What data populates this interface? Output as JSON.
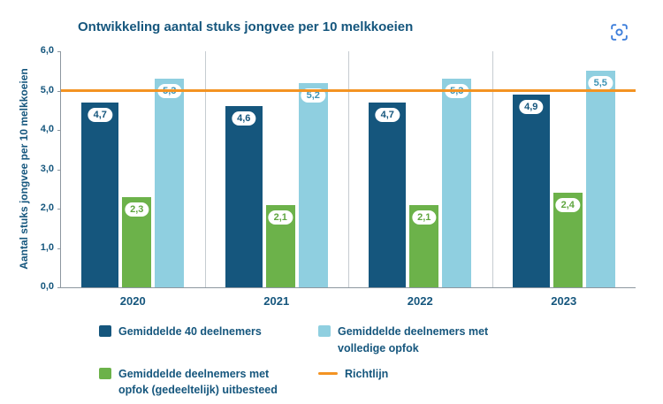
{
  "header": {
    "title": "Ontwikkeling aantal stuks jongvee per 10 melkkoeien",
    "focus_icon": "focus-scan-icon",
    "focus_icon_color": "#3D7EDB"
  },
  "chart_data": {
    "type": "bar",
    "title": "Ontwikkeling aantal stuks jongvee per 10 melkkoeien",
    "xlabel": "",
    "ylabel": "Aantal stuks jongvee per 10 melkkoeien",
    "ylim": [
      0,
      6
    ],
    "ytick_labels": [
      "0,0",
      "1,0",
      "2,0",
      "3,0",
      "4,0",
      "5,0",
      "6,0"
    ],
    "grid": false,
    "legend_position": "bottom",
    "categories": [
      "2020",
      "2021",
      "2022",
      "2023"
    ],
    "series": [
      {
        "name": "Gemiddelde 40 deelnemers",
        "color": "#15567D",
        "label_color": "#15567D",
        "values": [
          4.7,
          4.6,
          4.7,
          4.9
        ],
        "labels": [
          "4,7",
          "4,6",
          "4,7",
          "4,9"
        ]
      },
      {
        "name": "Gemiddelde deelnemers met opfok (gedeeltelijk) uitbesteed",
        "color": "#6CB24A",
        "label_color": "#5FA53F",
        "values": [
          2.3,
          2.1,
          2.1,
          2.4
        ],
        "labels": [
          "2,3",
          "2,1",
          "2,1",
          "2,4"
        ]
      },
      {
        "name": "Gemiddelde deelnemers met volledige opfok",
        "color": "#8FCFE0",
        "label_color": "#3D93B4",
        "values": [
          5.3,
          5.2,
          5.3,
          5.5
        ],
        "labels": [
          "5,3",
          "5,2",
          "5,3",
          "5,5"
        ]
      }
    ],
    "reference_line": {
      "name": "Richtlijn",
      "value": 5.0,
      "color": "#F39322"
    },
    "legend": [
      {
        "label": "Gemiddelde 40 deelnemers",
        "swatch": "square",
        "color": "#15567D"
      },
      {
        "label": "Gemiddelde deelnemers met volledige opfok",
        "swatch": "square",
        "color": "#8FCFE0"
      },
      {
        "label": "Gemiddelde deelnemers met opfok (gedeeltelijk) uitbesteed",
        "swatch": "square",
        "color": "#6CB24A"
      },
      {
        "label": "Richtlijn",
        "swatch": "line",
        "color": "#F39322"
      }
    ]
  }
}
